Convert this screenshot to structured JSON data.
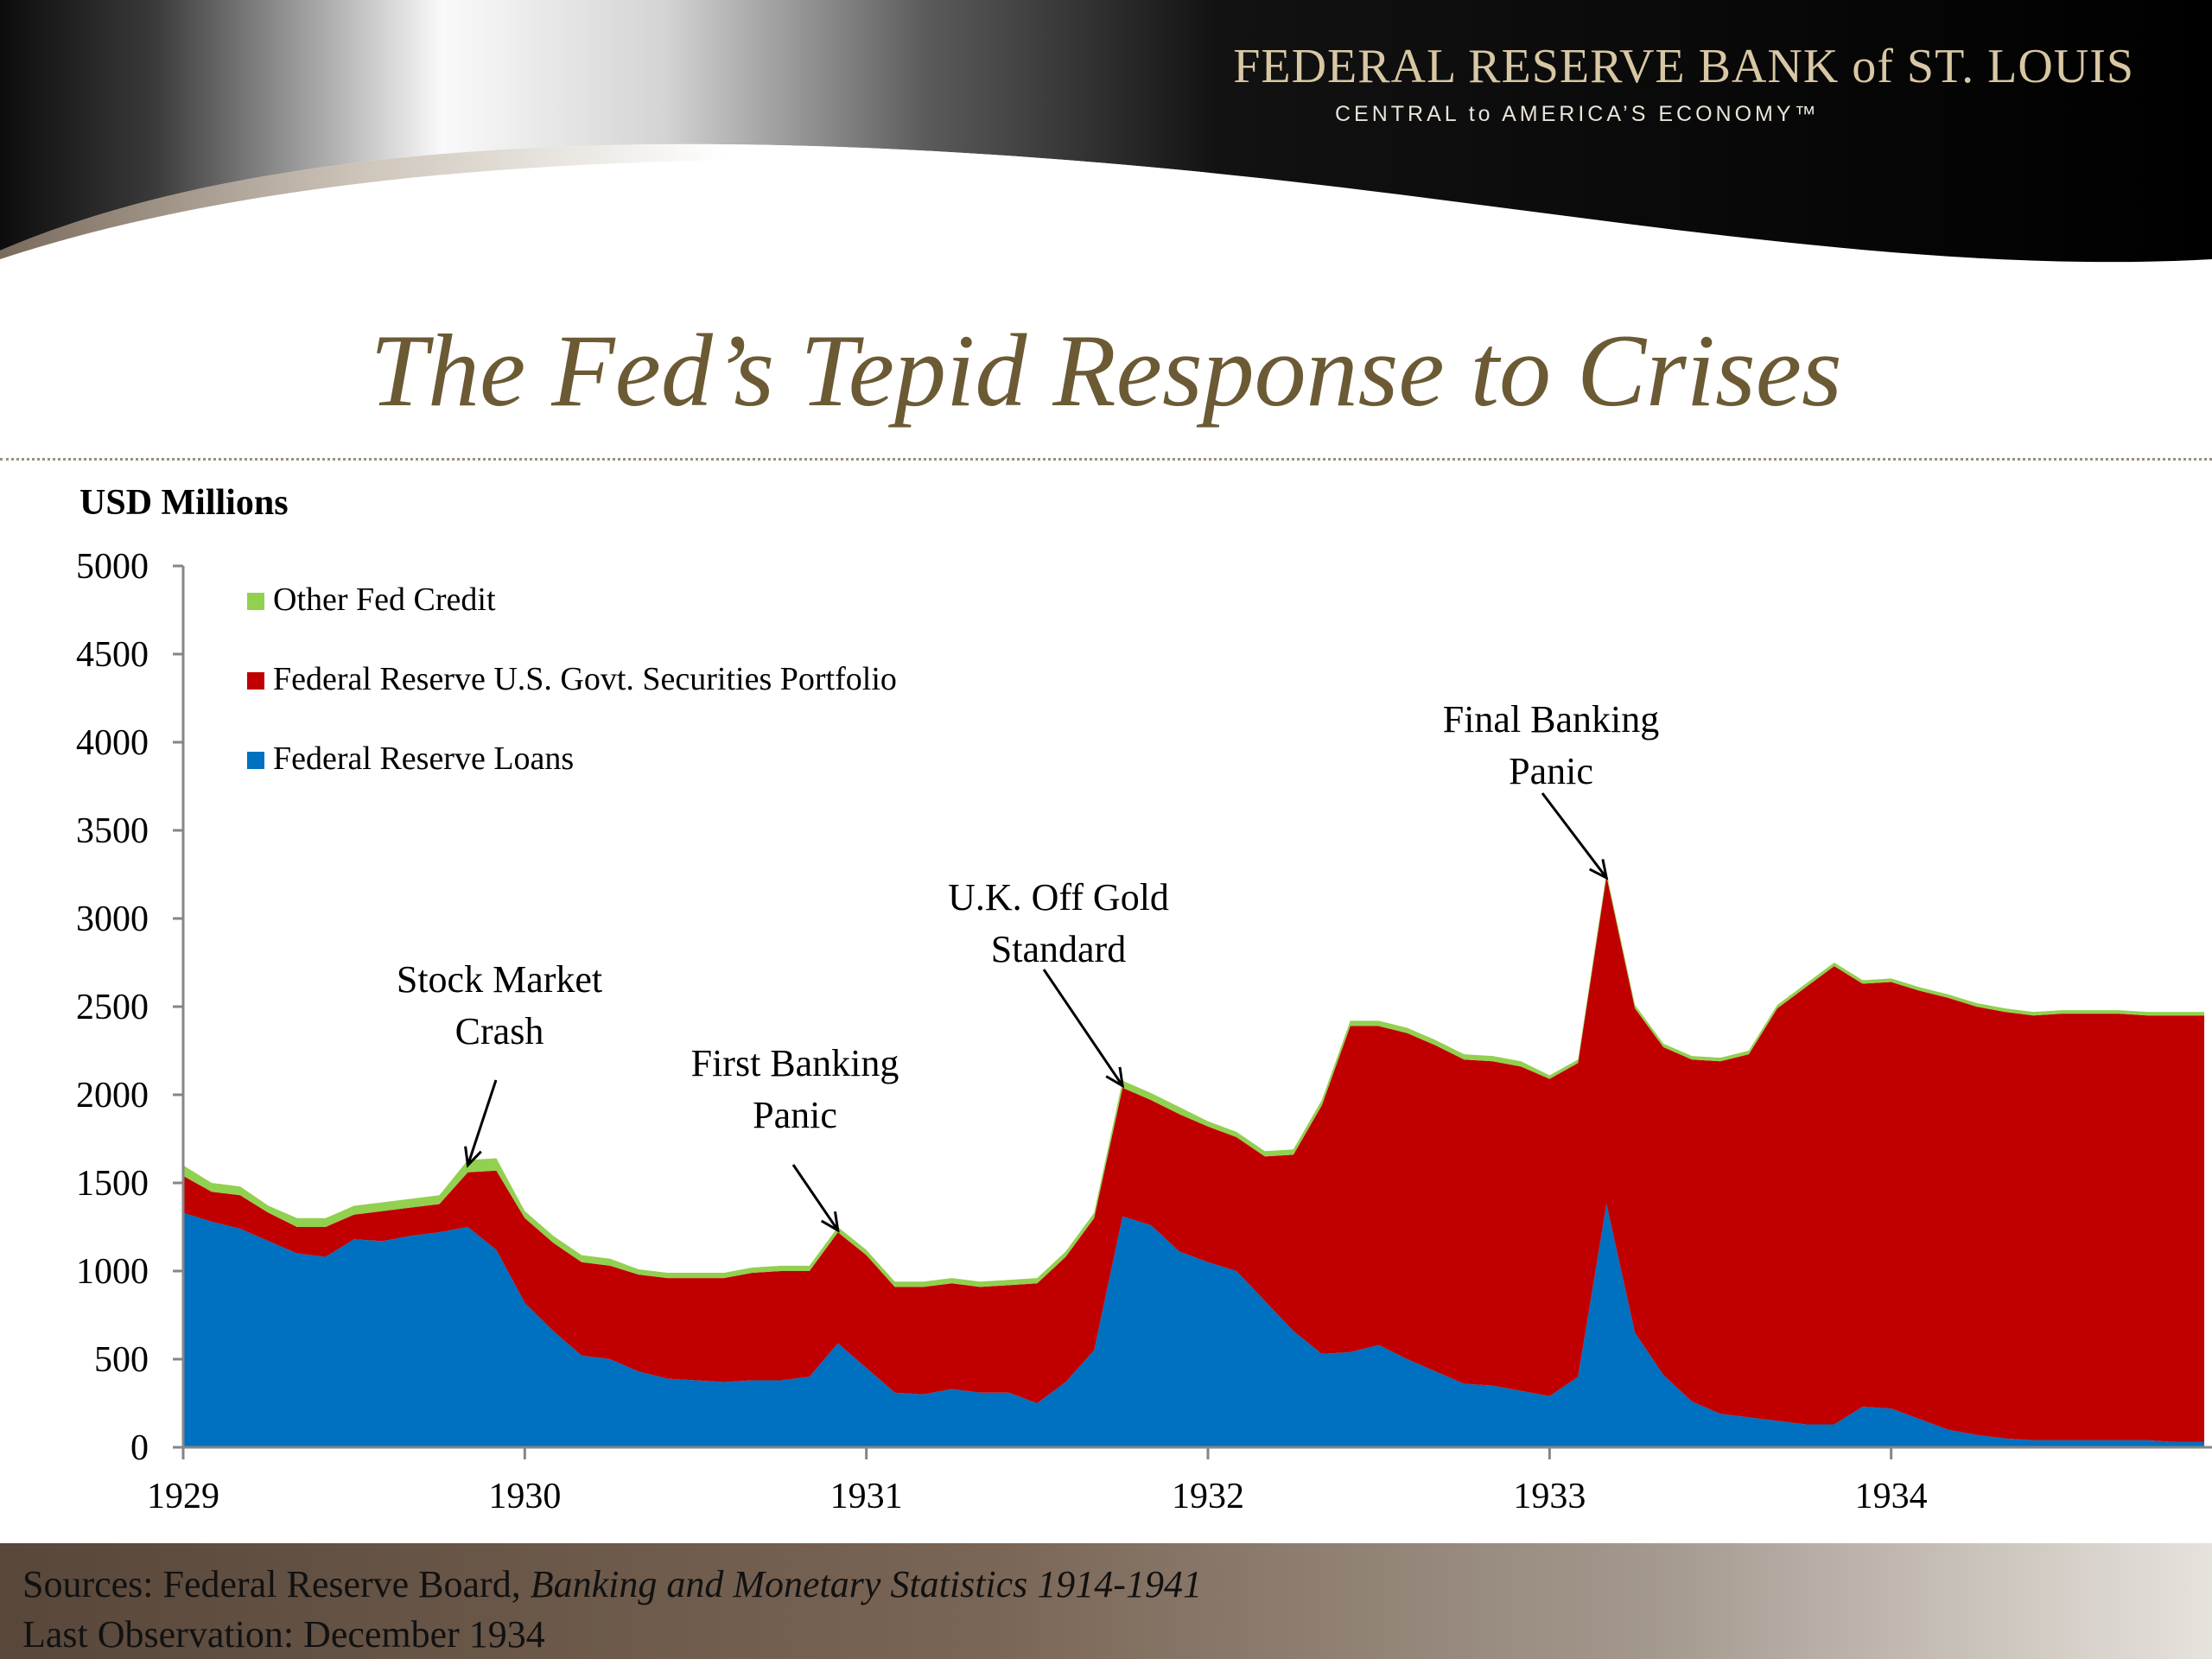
{
  "header": {
    "org_name": "FEDERAL RESERVE BANK of ST. LOUIS",
    "tagline": "CENTRAL to AMERICA’S ECONOMY™"
  },
  "title": "The Fed’s Tepid Response to Crises",
  "footer": {
    "sources_prefix": "Sources: Federal Reserve Board, ",
    "sources_book": "Banking and Monetary Statistics 1914-1941",
    "last_observation": "Last Observation: December 1934"
  },
  "colors": {
    "loans": "#0070c0",
    "securities": "#c00000",
    "other": "#92d050",
    "title": "#6b5a34"
  },
  "chart_data": {
    "type": "area",
    "stacked": true,
    "ylabel": "USD Millions",
    "ylim": [
      0,
      5000
    ],
    "yticks": [
      0,
      500,
      1000,
      1500,
      2000,
      2500,
      3000,
      3500,
      4000,
      4500,
      5000
    ],
    "xlim": [
      1929,
      1935
    ],
    "xticks": [
      "1929",
      "1930",
      "1931",
      "1932",
      "1933",
      "1934"
    ],
    "legend_position": "top-left",
    "legend_order": [
      "Other Fed Credit",
      "Federal Reserve U.S. Govt. Securities Portfolio",
      "Federal Reserve Loans"
    ],
    "x": [
      "1929-01",
      "1929-02",
      "1929-03",
      "1929-04",
      "1929-05",
      "1929-06",
      "1929-07",
      "1929-08",
      "1929-09",
      "1929-10",
      "1929-11",
      "1929-12",
      "1930-01",
      "1930-02",
      "1930-03",
      "1930-04",
      "1930-05",
      "1930-06",
      "1930-07",
      "1930-08",
      "1930-09",
      "1930-10",
      "1930-11",
      "1930-12",
      "1931-01",
      "1931-02",
      "1931-03",
      "1931-04",
      "1931-05",
      "1931-06",
      "1931-07",
      "1931-08",
      "1931-09",
      "1931-10",
      "1931-11",
      "1931-12",
      "1932-01",
      "1932-02",
      "1932-03",
      "1932-04",
      "1932-05",
      "1932-06",
      "1932-07",
      "1932-08",
      "1932-09",
      "1932-10",
      "1932-11",
      "1932-12",
      "1933-01",
      "1933-02",
      "1933-03",
      "1933-04",
      "1933-05",
      "1933-06",
      "1933-07",
      "1933-08",
      "1933-09",
      "1933-10",
      "1933-11",
      "1933-12",
      "1934-01",
      "1934-02",
      "1934-03",
      "1934-04",
      "1934-05",
      "1934-06",
      "1934-07",
      "1934-08",
      "1934-09",
      "1934-10",
      "1934-11",
      "1934-12"
    ],
    "series": [
      {
        "name": "Federal Reserve Loans",
        "color": "#0070c0",
        "values": [
          1330,
          1280,
          1240,
          1170,
          1100,
          1080,
          1180,
          1170,
          1200,
          1220,
          1250,
          1120,
          820,
          660,
          520,
          500,
          430,
          390,
          380,
          370,
          380,
          380,
          400,
          590,
          450,
          310,
          300,
          330,
          310,
          310,
          250,
          370,
          550,
          1310,
          1260,
          1110,
          1050,
          1000,
          830,
          660,
          530,
          540,
          580,
          500,
          430,
          360,
          350,
          320,
          290,
          400,
          1380,
          650,
          410,
          260,
          190,
          170,
          150,
          130,
          130,
          230,
          220,
          160,
          100,
          70,
          50,
          40,
          40,
          40,
          40,
          40,
          30,
          30
        ]
      },
      {
        "name": "Federal Reserve U.S. Govt. Securities Portfolio",
        "color": "#c00000",
        "values": [
          210,
          170,
          190,
          160,
          150,
          170,
          140,
          170,
          160,
          160,
          310,
          450,
          480,
          500,
          530,
          530,
          550,
          570,
          580,
          590,
          610,
          620,
          600,
          630,
          640,
          600,
          610,
          600,
          600,
          610,
          680,
          710,
          750,
          730,
          710,
          780,
          770,
          760,
          820,
          1000,
          1410,
          1850,
          1810,
          1850,
          1850,
          1840,
          1840,
          1840,
          1800,
          1780,
          1860,
          1840,
          1860,
          1940,
          2000,
          2060,
          2340,
          2480,
          2600,
          2400,
          2420,
          2430,
          2450,
          2430,
          2420,
          2410,
          2420,
          2420,
          2420,
          2410,
          2420,
          2420
        ]
      },
      {
        "name": "Other Fed Credit",
        "color": "#92d050",
        "values": [
          60,
          50,
          50,
          40,
          50,
          50,
          50,
          50,
          50,
          50,
          70,
          70,
          40,
          40,
          40,
          40,
          30,
          30,
          30,
          30,
          30,
          30,
          30,
          30,
          30,
          30,
          30,
          30,
          30,
          30,
          30,
          30,
          30,
          40,
          40,
          40,
          30,
          30,
          30,
          30,
          30,
          30,
          30,
          30,
          30,
          30,
          30,
          30,
          20,
          20,
          20,
          20,
          20,
          20,
          20,
          20,
          20,
          20,
          20,
          20,
          20,
          20,
          20,
          20,
          20,
          20,
          20,
          20,
          20,
          20,
          20,
          20
        ]
      }
    ],
    "annotations": [
      {
        "text_lines": [
          "Stock Market",
          "Crash"
        ],
        "x": "1929-11",
        "value": 1630
      },
      {
        "text_lines": [
          "First Banking",
          "Panic"
        ],
        "x": "1930-12",
        "value": 1260
      },
      {
        "text_lines": [
          "U.K. Off Gold",
          "Standard"
        ],
        "x": "1931-10",
        "value": 2080
      },
      {
        "text_lines": [
          "Final Banking",
          "Panic"
        ],
        "x": "1933-03",
        "value": 3260
      }
    ]
  }
}
